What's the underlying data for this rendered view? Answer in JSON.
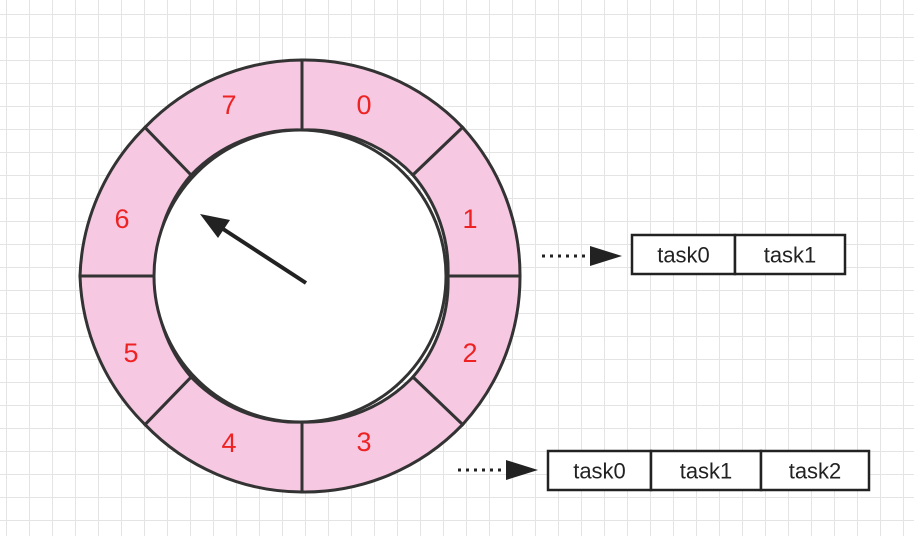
{
  "wheel": {
    "slots": [
      {
        "label": "0"
      },
      {
        "label": "1"
      },
      {
        "label": "2"
      },
      {
        "label": "3"
      },
      {
        "label": "4"
      },
      {
        "label": "5"
      },
      {
        "label": "6"
      },
      {
        "label": "7"
      }
    ],
    "pointer_slot": "6",
    "colors": {
      "ring": "#f7c8e2",
      "stroke": "#333333",
      "number": "#ee2222"
    }
  },
  "task_lists": [
    {
      "slot": "1",
      "tasks": [
        "task0",
        "task1"
      ]
    },
    {
      "slot": "3",
      "tasks": [
        "task0",
        "task1",
        "task2"
      ]
    }
  ]
}
